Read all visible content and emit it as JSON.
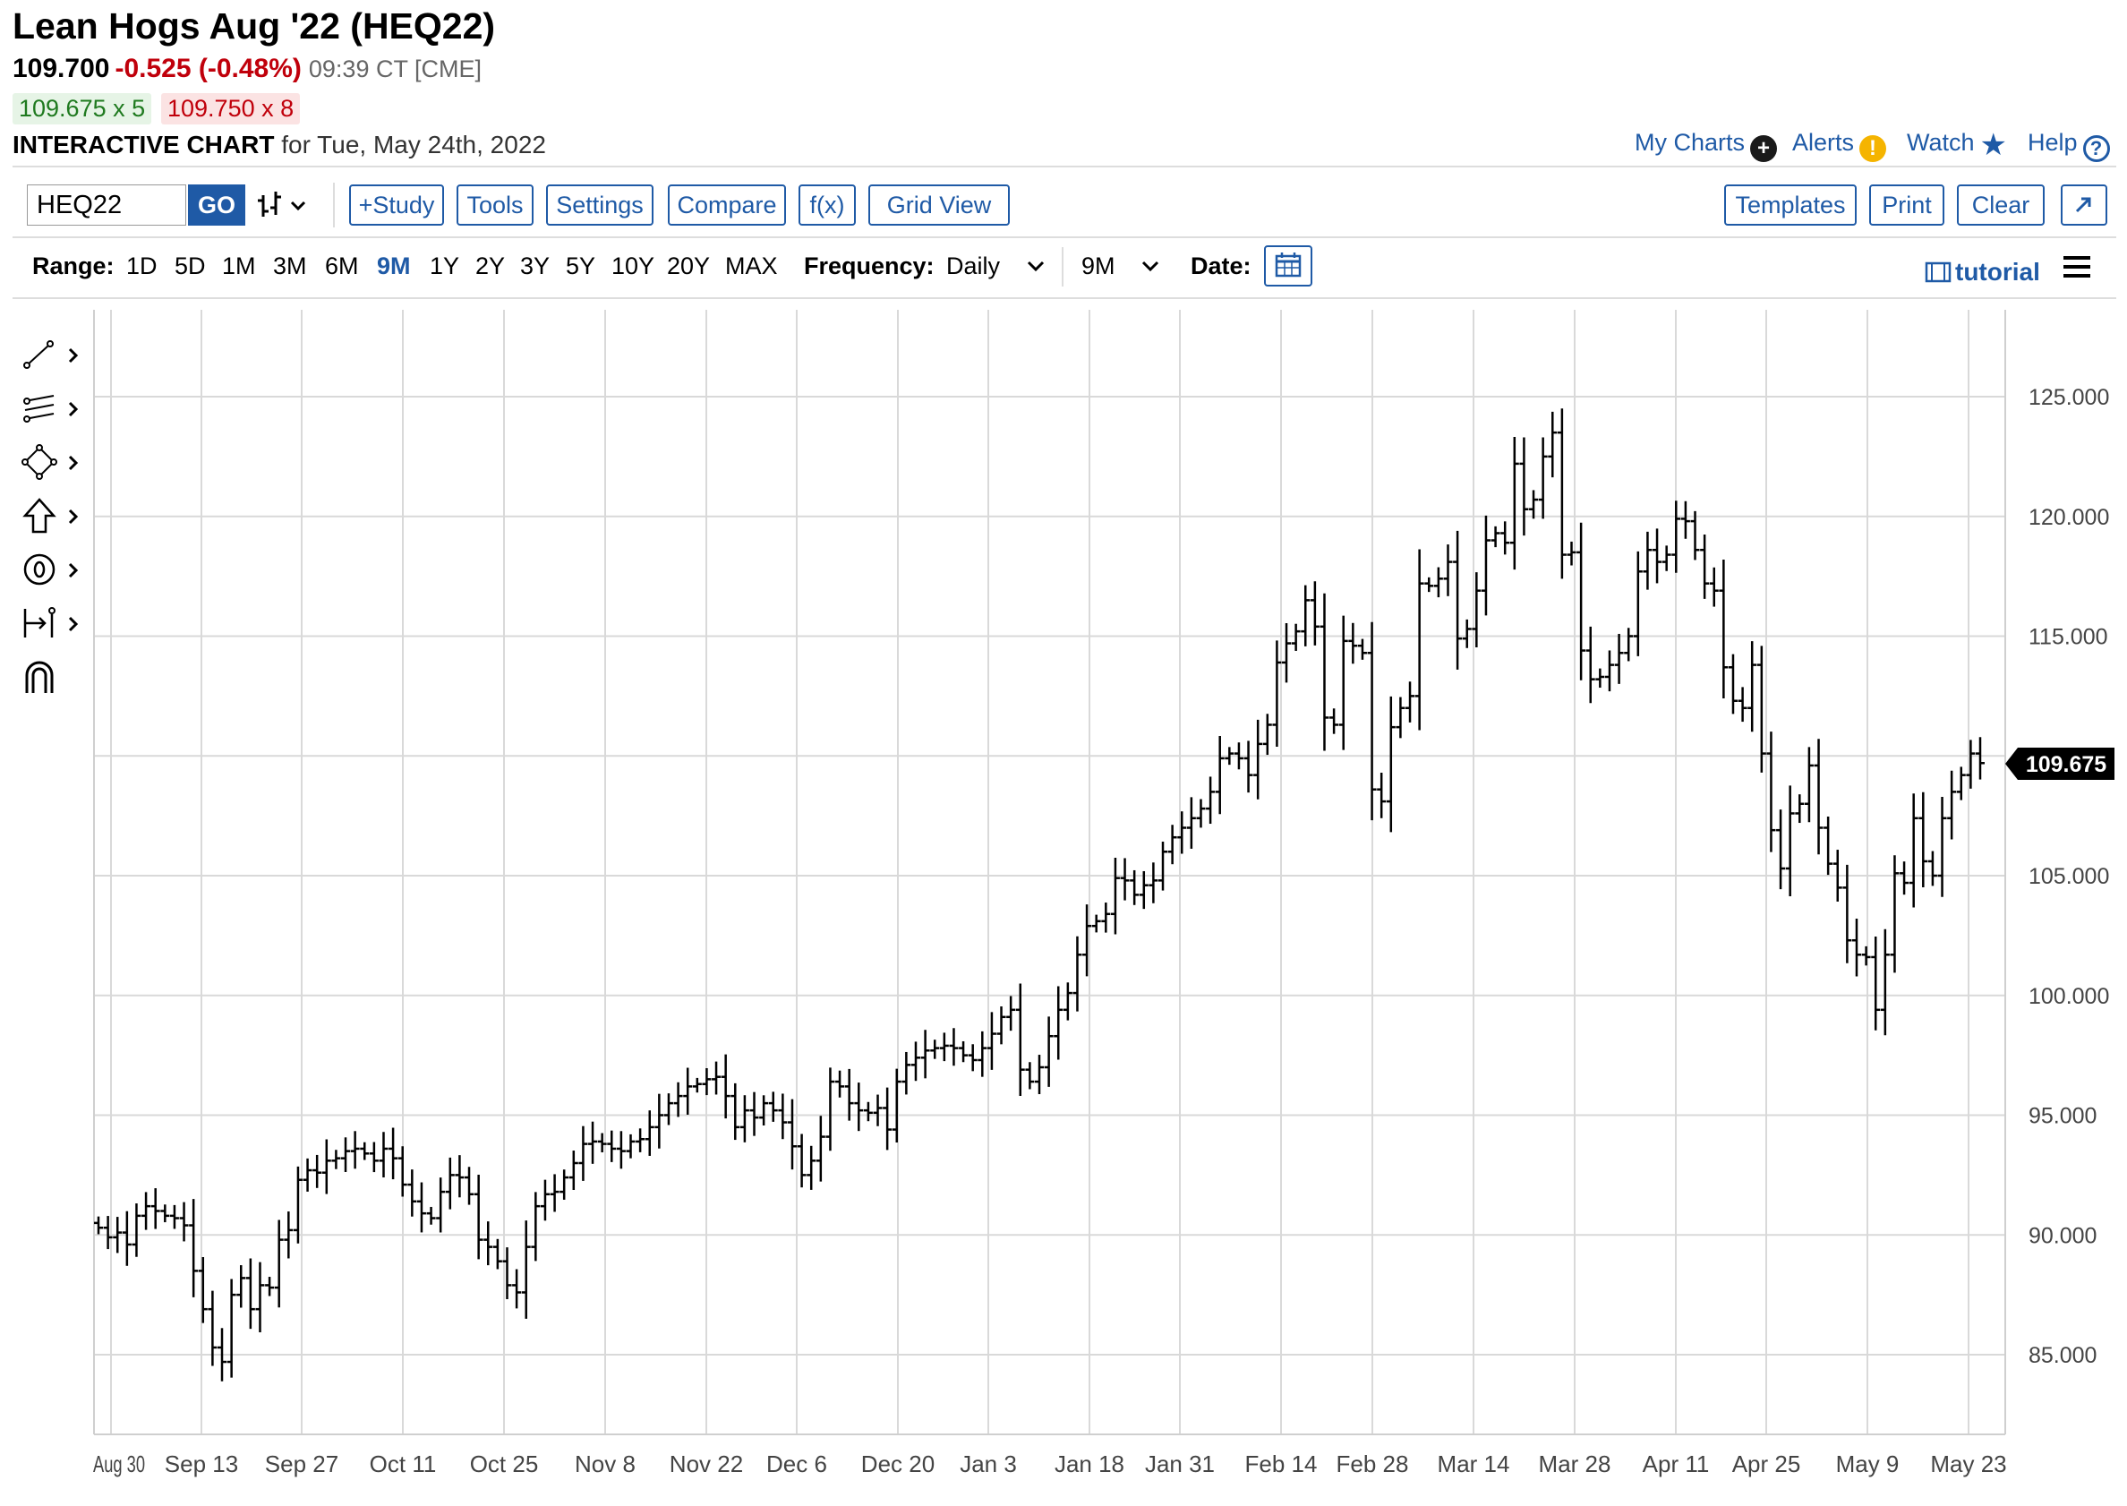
{
  "header": {
    "title": "Lean Hogs Aug '22 (HEQ22)",
    "last": "109.700",
    "change": "-0.525 (-0.48%)",
    "time": "09:39 CT [CME]",
    "bid": "109.675 x 5",
    "ask": "109.750 x 8",
    "chart_heading": "INTERACTIVE CHART",
    "chart_date": "for Tue, May 24th, 2022"
  },
  "top_links": {
    "my_charts": "My Charts",
    "alerts": "Alerts",
    "watch": "Watch",
    "help": "Help"
  },
  "toolbar": {
    "symbol_value": "HEQ22",
    "go": "GO",
    "study": "+Study",
    "tools": "Tools",
    "settings": "Settings",
    "compare": "Compare",
    "fx": "f(x)",
    "grid_view": "Grid View",
    "templates": "Templates",
    "print": "Print",
    "clear": "Clear"
  },
  "range_bar": {
    "range_label": "Range:",
    "ranges": [
      "1D",
      "5D",
      "1M",
      "3M",
      "6M",
      "9M",
      "1Y",
      "2Y",
      "3Y",
      "5Y",
      "10Y",
      "20Y",
      "MAX"
    ],
    "active_range": "9M",
    "frequency_label": "Frequency:",
    "frequency": "Daily",
    "period": "9M",
    "date_label": "Date:",
    "tutorial": "tutorial"
  },
  "drawing_tools": [
    "line-tool-icon",
    "fibonacci-tool-icon",
    "shapes-tool-icon",
    "arrow-tool-icon",
    "annotation-tool-icon",
    "measure-tool-icon",
    "magnet-icon"
  ],
  "colors": {
    "accent": "#1f5aa6",
    "negative": "#c0000b",
    "positive": "#1f7a1f",
    "bars": "#000000",
    "grid": "#d9d9d9"
  },
  "chart_data": {
    "type": "ohlc",
    "title": "",
    "xlabel": "",
    "ylabel": "",
    "ylim": [
      82,
      127
    ],
    "y_ticks": [
      "85.000",
      "90.000",
      "95.000",
      "100.000",
      "105.000",
      "110.000",
      "115.000",
      "120.000",
      "125.000"
    ],
    "x_tick_labels": [
      "Aug 30",
      "Sep 13",
      "Sep 27",
      "Oct 11",
      "Oct 25",
      "Nov 8",
      "Nov 22",
      "Dec 6",
      "Dec 20",
      "Jan 3",
      "Jan 18",
      "Jan 31",
      "Feb 14",
      "Feb 28",
      "Mar 14",
      "Mar 28",
      "Apr 11",
      "Apr 25",
      "May 9",
      "May 23"
    ],
    "last_price_label": "109.675",
    "grid": true,
    "close_approx": [
      90.3,
      89.9,
      90.1,
      89.6,
      90.8,
      91.2,
      91.0,
      90.8,
      90.7,
      90.4,
      88.5,
      86.9,
      85.3,
      84.7,
      87.5,
      88.2,
      86.9,
      87.9,
      87.8,
      89.8,
      90.2,
      92.3,
      92.7,
      92.6,
      93.1,
      93.2,
      93.5,
      93.6,
      93.4,
      93.1,
      93.6,
      93.2,
      92.1,
      91.4,
      90.9,
      90.7,
      91.8,
      92.5,
      92.4,
      91.7,
      89.8,
      89.5,
      88.9,
      87.9,
      87.6,
      89.5,
      91.2,
      91.7,
      91.8,
      92.4,
      93.0,
      93.8,
      93.9,
      93.8,
      93.6,
      93.5,
      93.9,
      94.0,
      94.5,
      95.0,
      95.5,
      95.8,
      96.2,
      96.3,
      96.5,
      96.6,
      95.8,
      94.5,
      95.2,
      94.9,
      95.5,
      95.2,
      94.7,
      93.7,
      92.5,
      93.1,
      94.1,
      96.4,
      96.2,
      95.5,
      95.2,
      95.1,
      95.3,
      94.4,
      96.4,
      97.1,
      97.4,
      97.7,
      97.8,
      97.9,
      97.8,
      97.5,
      97.3,
      97.8,
      98.4,
      99.1,
      99.4,
      96.9,
      96.4,
      97.0,
      98.3,
      99.4,
      100.1,
      101.7,
      102.9,
      103.1,
      103.4,
      104.9,
      104.8,
      104.2,
      104.6,
      104.8,
      106.0,
      106.6,
      107.0,
      107.4,
      107.8,
      108.5,
      109.9,
      110.1,
      109.9,
      109.2,
      110.5,
      111.3,
      113.9,
      114.7,
      115.2,
      116.5,
      115.4,
      111.6,
      111.3,
      114.8,
      114.6,
      114.3,
      108.6,
      108.1,
      111.2,
      112.0,
      112.5,
      117.2,
      117.1,
      117.4,
      118.1,
      114.9,
      115.3,
      116.9,
      119.0,
      119.3,
      118.9,
      122.2,
      120.3,
      120.7,
      122.5,
      123.5,
      118.4,
      118.5,
      114.4,
      113.2,
      113.3,
      113.8,
      114.3,
      115.0,
      117.7,
      118.6,
      118.1,
      118.4,
      119.9,
      119.8,
      118.6,
      117.2,
      116.9,
      113.7,
      112.3,
      112.0,
      113.8,
      110.1,
      106.9,
      105.3,
      107.6,
      108.0,
      109.6,
      107.0,
      105.5,
      104.5,
      102.3,
      101.7,
      101.6,
      99.4,
      101.7,
      105.1,
      104.7,
      107.4,
      105.6,
      105.0,
      107.4,
      108.5,
      109.2,
      110.1,
      109.7
    ]
  }
}
